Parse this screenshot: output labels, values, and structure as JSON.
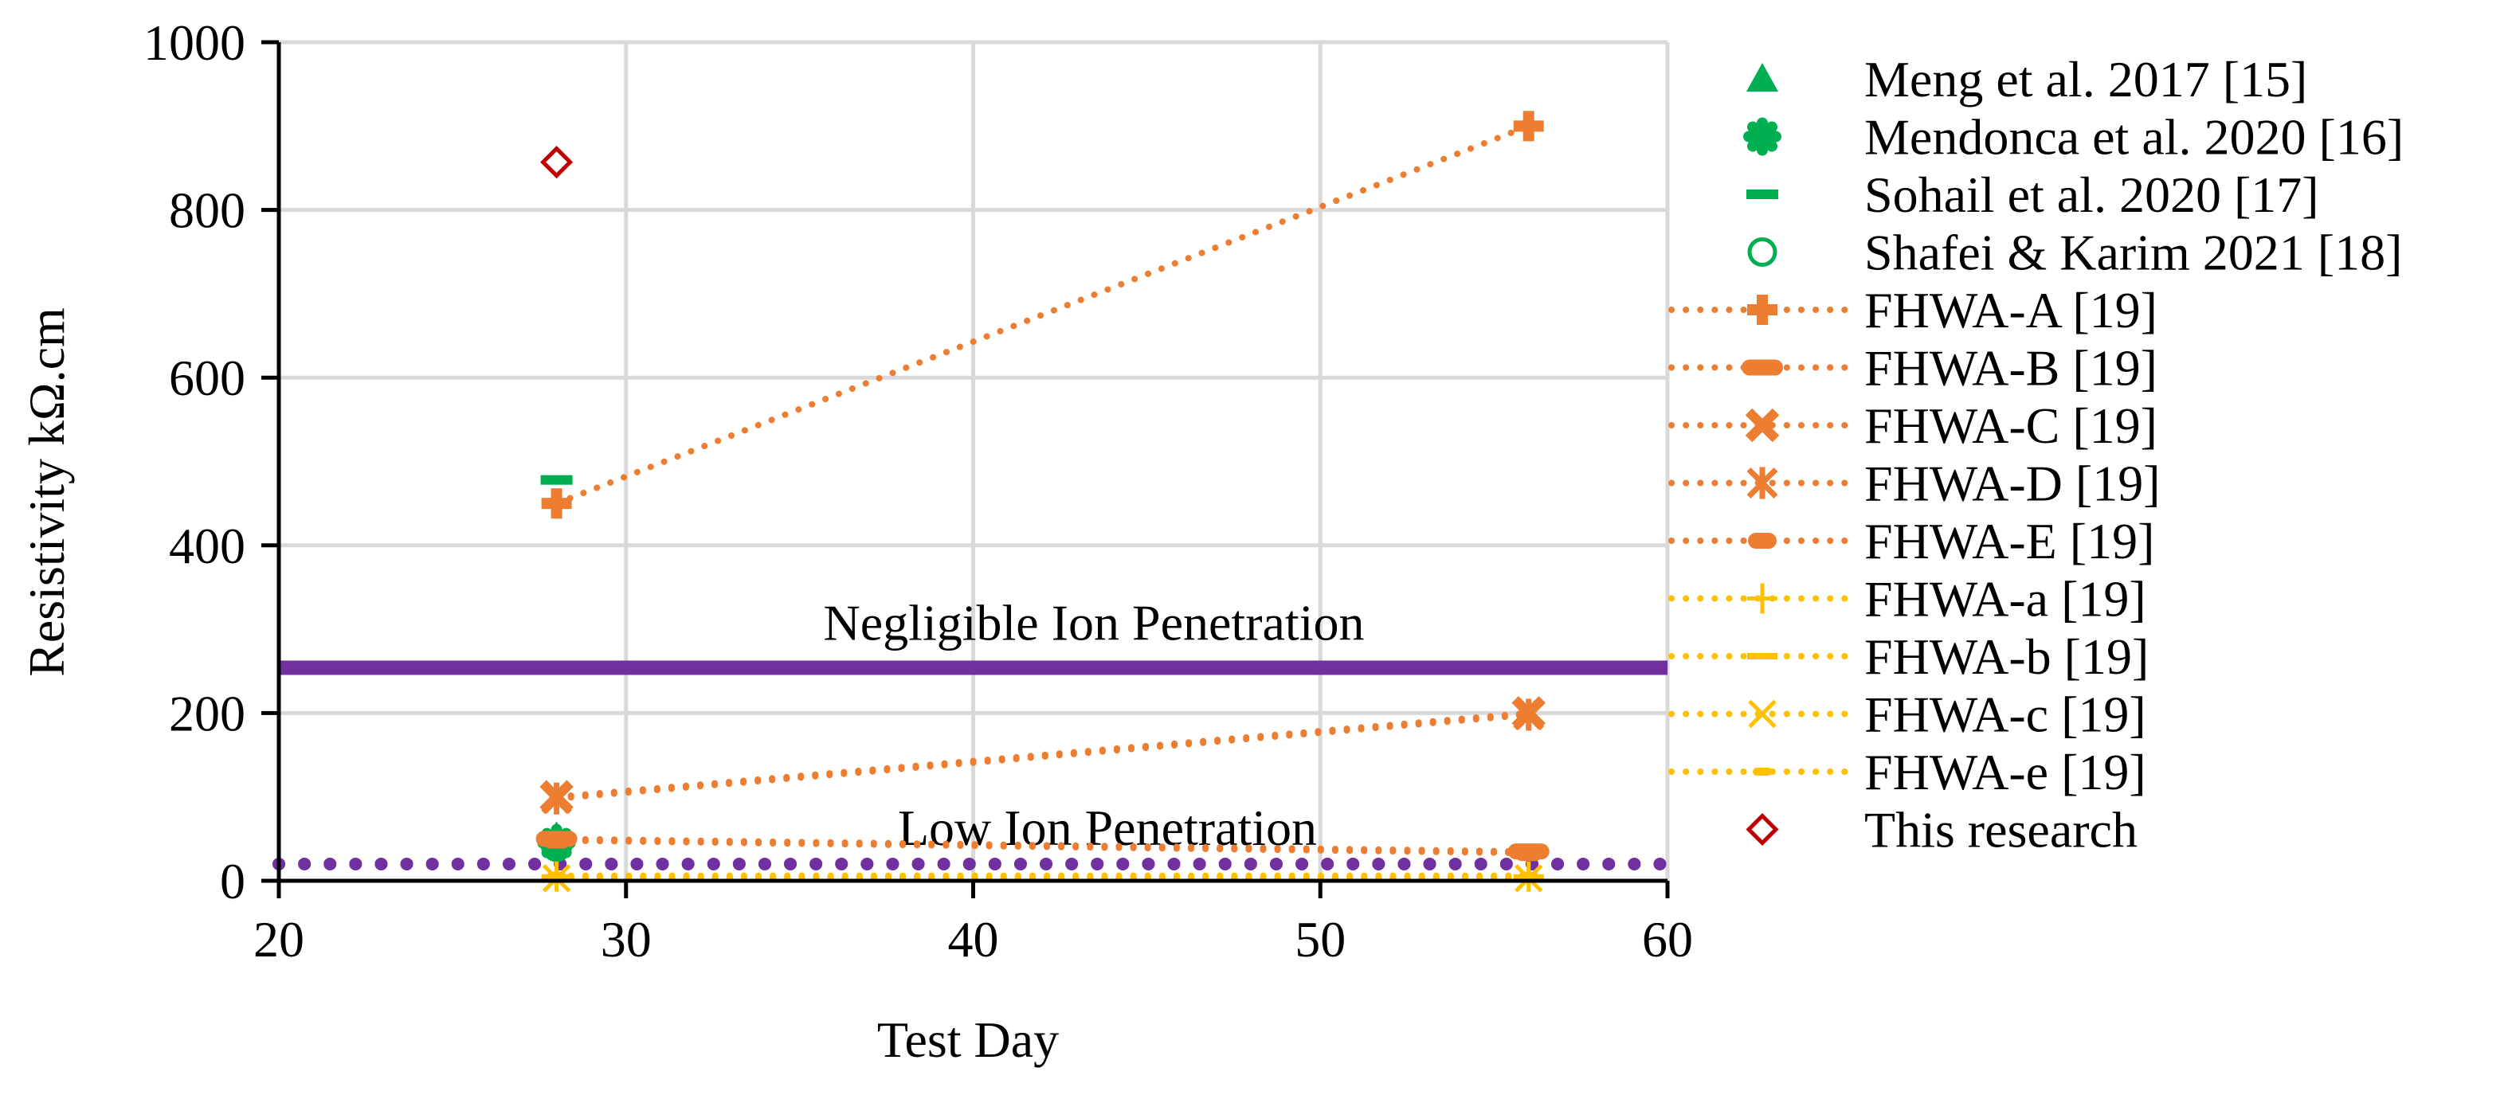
{
  "chart_data": {
    "type": "scatter",
    "title": "",
    "xlabel": "Test Day",
    "ylabel": "Resistivity kΩ.cm",
    "xlim": [
      20,
      60
    ],
    "ylim": [
      0,
      1000
    ],
    "x_ticks": [
      20,
      30,
      40,
      50,
      60
    ],
    "y_ticks": [
      0,
      200,
      400,
      600,
      800,
      1000
    ],
    "grid": true,
    "legend_position": "right",
    "reference_lines": [
      {
        "label": "Negligible Ion Penetration",
        "y": 254,
        "style": "solid",
        "color": "#7030A0"
      },
      {
        "label": "Low Ion Penetration",
        "y": 20,
        "style": "dotted",
        "color": "#7030A0"
      }
    ],
    "series": [
      {
        "name": "Meng et al. 2017 [15]",
        "marker": "triangle",
        "color": "#00B050",
        "line": false,
        "x": [
          28
        ],
        "y": [
          52
        ]
      },
      {
        "name": "Mendonca et al. 2020 [16]",
        "marker": "gear",
        "color": "#00B050",
        "line": false,
        "x": [
          28
        ],
        "y": [
          45
        ]
      },
      {
        "name": "Sohail et al. 2020 [17]",
        "marker": "dash",
        "color": "#00B050",
        "line": false,
        "x": [
          28
        ],
        "y": [
          478
        ]
      },
      {
        "name": "Shafei & Karim 2021 [18]",
        "marker": "circle-open",
        "color": "#00B050",
        "line": false,
        "x": [
          28
        ],
        "y": [
          40
        ]
      },
      {
        "name": "FHWA-A [19]",
        "marker": "plus-bold",
        "color": "#ED7D31",
        "line": true,
        "x": [
          28,
          56
        ],
        "y": [
          450,
          900
        ]
      },
      {
        "name": "FHWA-B [19]",
        "marker": "bar",
        "color": "#ED7D31",
        "line": true,
        "x": [
          28,
          56
        ],
        "y": [
          50,
          35
        ]
      },
      {
        "name": "FHWA-C [19]",
        "marker": "x-bold",
        "color": "#ED7D31",
        "line": true,
        "x": [
          28,
          56
        ],
        "y": [
          100,
          200
        ]
      },
      {
        "name": "FHWA-D [19]",
        "marker": "asterisk",
        "color": "#ED7D31",
        "line": true,
        "x": [
          28,
          56
        ],
        "y": [
          98,
          198
        ]
      },
      {
        "name": "FHWA-E [19]",
        "marker": "pill",
        "color": "#ED7D31",
        "line": true,
        "x": [
          28,
          56
        ],
        "y": [
          48,
          33
        ]
      },
      {
        "name": "FHWA-a [19]",
        "marker": "plus-thin",
        "color": "#FFC000",
        "line": true,
        "x": [
          28,
          56
        ],
        "y": [
          5,
          5
        ]
      },
      {
        "name": "FHWA-b [19]",
        "marker": "dash-thin",
        "color": "#FFC000",
        "line": true,
        "x": [
          28,
          56
        ],
        "y": [
          4,
          4
        ]
      },
      {
        "name": "FHWA-c [19]",
        "marker": "x-thin",
        "color": "#FFC000",
        "line": true,
        "x": [
          28,
          56
        ],
        "y": [
          3,
          3
        ]
      },
      {
        "name": "FHWA-e [19]",
        "marker": "dash-small",
        "color": "#FFC000",
        "line": true,
        "x": [
          28,
          56
        ],
        "y": [
          6,
          6
        ]
      },
      {
        "name": "This research",
        "marker": "diamond-open",
        "color": "#C00000",
        "line": false,
        "x": [
          28
        ],
        "y": [
          857
        ]
      }
    ]
  }
}
